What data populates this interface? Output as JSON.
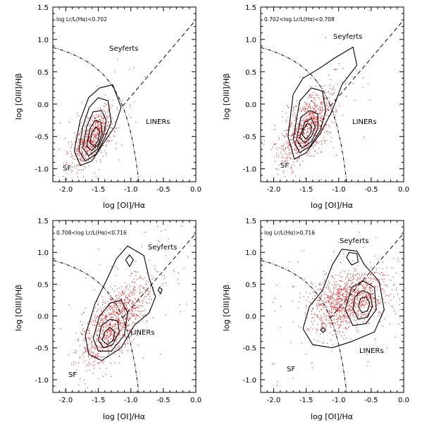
{
  "chart_data": [
    {
      "type": "scatter",
      "condition_label": "log Lr/L(Hα)<0.702",
      "xlabel": "log [OI]/Hα",
      "ylabel": "log [OIII]/Hβ",
      "xlim": [
        -2.2,
        0.0
      ],
      "ylim": [
        -1.2,
        1.5
      ],
      "xticks": [
        "-2.0",
        "-1.5",
        "-1.0",
        "-0.5",
        "0.0"
      ],
      "yticks": [
        "-1.0",
        "-0.5",
        "0.0",
        "0.5",
        "1.0",
        "1.5"
      ],
      "region_labels": {
        "seyferts": "Seyferts",
        "liners": "LINERs",
        "sf": "SF"
      },
      "point_cloud": {
        "center": [
          -1.58,
          -0.5
        ],
        "spread": [
          0.2,
          0.3
        ],
        "count": 700,
        "tilt": 0.9
      },
      "contours": [
        [
          [
            -1.87,
            -0.72
          ],
          [
            -1.78,
            -0.95
          ],
          [
            -1.6,
            -0.88
          ],
          [
            -1.42,
            -0.6
          ],
          [
            -1.25,
            -0.35
          ],
          [
            -1.15,
            -0.05
          ],
          [
            -1.28,
            0.3
          ],
          [
            -1.48,
            0.25
          ],
          [
            -1.65,
            0.1
          ],
          [
            -1.78,
            -0.25
          ],
          [
            -1.87,
            -0.72
          ]
        ],
        [
          [
            -1.8,
            -0.72
          ],
          [
            -1.7,
            -0.88
          ],
          [
            -1.54,
            -0.78
          ],
          [
            -1.4,
            -0.52
          ],
          [
            -1.3,
            -0.28
          ],
          [
            -1.35,
            0.05
          ],
          [
            -1.5,
            0.1
          ],
          [
            -1.64,
            -0.05
          ],
          [
            -1.74,
            -0.35
          ],
          [
            -1.8,
            -0.72
          ]
        ],
        [
          [
            -1.74,
            -0.68
          ],
          [
            -1.65,
            -0.8
          ],
          [
            -1.52,
            -0.7
          ],
          [
            -1.42,
            -0.48
          ],
          [
            -1.38,
            -0.25
          ],
          [
            -1.45,
            -0.1
          ],
          [
            -1.58,
            -0.12
          ],
          [
            -1.68,
            -0.35
          ],
          [
            -1.74,
            -0.68
          ]
        ],
        [
          [
            -1.68,
            -0.65
          ],
          [
            -1.6,
            -0.72
          ],
          [
            -1.5,
            -0.62
          ],
          [
            -1.44,
            -0.45
          ],
          [
            -1.46,
            -0.28
          ],
          [
            -1.55,
            -0.25
          ],
          [
            -1.63,
            -0.38
          ],
          [
            -1.68,
            -0.65
          ]
        ],
        [
          [
            -1.63,
            -0.6
          ],
          [
            -1.56,
            -0.66
          ],
          [
            -1.5,
            -0.55
          ],
          [
            -1.48,
            -0.42
          ],
          [
            -1.54,
            -0.35
          ],
          [
            -1.6,
            -0.45
          ],
          [
            -1.63,
            -0.6
          ]
        ]
      ]
    },
    {
      "type": "scatter",
      "condition_label": "0.702<log Lr/L(Hα)<0.708",
      "xlabel": "log [OI]/Hα",
      "ylabel": "log [OIII]/Hβ",
      "xlim": [
        -2.2,
        0.0
      ],
      "ylim": [
        -1.2,
        1.5
      ],
      "xticks": [
        "-2.0",
        "-1.5",
        "-1.0",
        "-0.5",
        "0.0"
      ],
      "yticks": [
        "-1.0",
        "-0.5",
        "0.0",
        "0.5",
        "1.0",
        "1.5"
      ],
      "region_labels": {
        "seyferts": "Seyferts",
        "liners": "LINERs",
        "sf": "SF"
      },
      "point_cloud": {
        "center": [
          -1.5,
          -0.35
        ],
        "spread": [
          0.26,
          0.38
        ],
        "count": 900,
        "tilt": 0.9
      },
      "contours": [
        [
          [
            -1.78,
            -0.5
          ],
          [
            -1.68,
            -0.85
          ],
          [
            -1.5,
            -0.75
          ],
          [
            -1.28,
            -0.45
          ],
          [
            -1.1,
            -0.1
          ],
          [
            -0.95,
            0.3
          ],
          [
            -0.72,
            0.6
          ],
          [
            -0.78,
            0.88
          ],
          [
            -1.08,
            0.7
          ],
          [
            -1.3,
            0.55
          ],
          [
            -1.55,
            0.4
          ],
          [
            -1.7,
            0.15
          ],
          [
            -1.78,
            -0.5
          ]
        ],
        [
          [
            -1.7,
            -0.55
          ],
          [
            -1.6,
            -0.75
          ],
          [
            -1.44,
            -0.65
          ],
          [
            -1.28,
            -0.4
          ],
          [
            -1.2,
            -0.1
          ],
          [
            -1.25,
            0.2
          ],
          [
            -1.42,
            0.25
          ],
          [
            -1.6,
            0.05
          ],
          [
            -1.7,
            -0.55
          ]
        ],
        [
          [
            -1.65,
            -0.55
          ],
          [
            -1.56,
            -0.68
          ],
          [
            -1.42,
            -0.58
          ],
          [
            -1.32,
            -0.38
          ],
          [
            -1.32,
            -0.15
          ],
          [
            -1.45,
            -0.1
          ],
          [
            -1.58,
            -0.2
          ],
          [
            -1.65,
            -0.55
          ]
        ],
        [
          [
            -1.6,
            -0.52
          ],
          [
            -1.52,
            -0.6
          ],
          [
            -1.42,
            -0.5
          ],
          [
            -1.36,
            -0.35
          ],
          [
            -1.42,
            -0.22
          ],
          [
            -1.52,
            -0.28
          ],
          [
            -1.6,
            -0.52
          ]
        ],
        [
          [
            -1.56,
            -0.48
          ],
          [
            -1.5,
            -0.54
          ],
          [
            -1.43,
            -0.45
          ],
          [
            -1.42,
            -0.34
          ],
          [
            -1.48,
            -0.3
          ],
          [
            -1.54,
            -0.38
          ],
          [
            -1.56,
            -0.48
          ]
        ]
      ]
    },
    {
      "type": "scatter",
      "condition_label": "0.708<log Lr/L(Hα)<0.716",
      "xlabel": "log [OI]/Hα",
      "ylabel": "log [OIII]/Hβ",
      "xlim": [
        -2.2,
        0.0
      ],
      "ylim": [
        -1.2,
        1.5
      ],
      "xticks": [
        "-2.0",
        "-1.5",
        "-1.0",
        "-0.5",
        "0.0"
      ],
      "yticks": [
        "-1.0",
        "-0.5",
        "0.0",
        "0.5",
        "1.0",
        "1.5"
      ],
      "region_labels": {
        "seyferts": "Seyferts",
        "liners": "LINERs",
        "sf": "SF"
      },
      "point_cloud": {
        "center": [
          -1.25,
          -0.1
        ],
        "spread": [
          0.32,
          0.45
        ],
        "count": 1100,
        "tilt": 0.8
      },
      "contours": [
        [
          [
            -1.7,
            -0.3
          ],
          [
            -1.65,
            -0.6
          ],
          [
            -1.45,
            -0.7
          ],
          [
            -1.15,
            -0.5
          ],
          [
            -0.95,
            -0.15
          ],
          [
            -0.72,
            0.05
          ],
          [
            -0.62,
            0.3
          ],
          [
            -0.72,
            0.6
          ],
          [
            -0.8,
            0.95
          ],
          [
            -1.05,
            1.1
          ],
          [
            -1.22,
            0.9
          ],
          [
            -1.38,
            0.55
          ],
          [
            -1.55,
            0.2
          ],
          [
            -1.7,
            -0.3
          ]
        ],
        [
          [
            -1.58,
            -0.35
          ],
          [
            -1.5,
            -0.55
          ],
          [
            -1.3,
            -0.55
          ],
          [
            -1.1,
            -0.3
          ],
          [
            -1.05,
            0.05
          ],
          [
            -1.15,
            0.25
          ],
          [
            -1.32,
            0.2
          ],
          [
            -1.48,
            0.0
          ],
          [
            -1.58,
            -0.35
          ]
        ],
        [
          [
            -1.5,
            -0.38
          ],
          [
            -1.42,
            -0.5
          ],
          [
            -1.28,
            -0.45
          ],
          [
            -1.18,
            -0.25
          ],
          [
            -1.2,
            -0.08
          ],
          [
            -1.32,
            -0.05
          ],
          [
            -1.45,
            -0.15
          ],
          [
            -1.5,
            -0.38
          ]
        ],
        [
          [
            -1.44,
            -0.38
          ],
          [
            -1.36,
            -0.45
          ],
          [
            -1.27,
            -0.38
          ],
          [
            -1.25,
            -0.25
          ],
          [
            -1.32,
            -0.18
          ],
          [
            -1.4,
            -0.25
          ],
          [
            -1.44,
            -0.38
          ]
        ],
        [
          [
            -1.08,
            0.88
          ],
          [
            -1.02,
            0.78
          ],
          [
            -0.96,
            0.88
          ],
          [
            -1.02,
            0.96
          ],
          [
            -1.08,
            0.88
          ]
        ],
        [
          [
            -0.58,
            0.4
          ],
          [
            -0.54,
            0.35
          ],
          [
            -0.52,
            0.42
          ],
          [
            -0.56,
            0.45
          ],
          [
            -0.58,
            0.4
          ]
        ]
      ]
    },
    {
      "type": "scatter",
      "condition_label": "log Lr/L(Hα)>0.716",
      "xlabel": "log [OI]/Hα",
      "ylabel": "log [OIII]/Hβ",
      "xlim": [
        -2.2,
        0.0
      ],
      "ylim": [
        -1.2,
        1.5
      ],
      "xticks": [
        "-2.0",
        "-1.5",
        "-1.0",
        "-0.5",
        "0.0"
      ],
      "yticks": [
        "-1.0",
        "-0.5",
        "0.0",
        "0.5",
        "1.0",
        "1.5"
      ],
      "region_labels": {
        "seyferts": "Seyferts",
        "liners": "LINERs",
        "sf": "SF"
      },
      "point_cloud": {
        "center": [
          -0.85,
          0.25
        ],
        "spread": [
          0.38,
          0.4
        ],
        "count": 1200,
        "tilt": 0.3
      },
      "contours": [
        [
          [
            -1.55,
            -0.2
          ],
          [
            -1.4,
            -0.45
          ],
          [
            -1.1,
            -0.5
          ],
          [
            -0.8,
            -0.4
          ],
          [
            -0.45,
            -0.25
          ],
          [
            -0.3,
            0.1
          ],
          [
            -0.38,
            0.55
          ],
          [
            -0.6,
            0.8
          ],
          [
            -0.72,
            1.02
          ],
          [
            -0.95,
            1.05
          ],
          [
            -1.1,
            0.8
          ],
          [
            -1.25,
            0.4
          ],
          [
            -1.45,
            0.15
          ],
          [
            -1.55,
            -0.2
          ]
        ],
        [
          [
            -0.9,
            0.1
          ],
          [
            -0.78,
            -0.15
          ],
          [
            -0.58,
            -0.12
          ],
          [
            -0.42,
            0.1
          ],
          [
            -0.45,
            0.45
          ],
          [
            -0.62,
            0.55
          ],
          [
            -0.8,
            0.45
          ],
          [
            -0.9,
            0.1
          ]
        ],
        [
          [
            -0.78,
            0.12
          ],
          [
            -0.7,
            -0.05
          ],
          [
            -0.56,
            -0.02
          ],
          [
            -0.48,
            0.15
          ],
          [
            -0.52,
            0.35
          ],
          [
            -0.64,
            0.4
          ],
          [
            -0.75,
            0.3
          ],
          [
            -0.78,
            0.12
          ]
        ],
        [
          [
            -0.7,
            0.15
          ],
          [
            -0.64,
            0.05
          ],
          [
            -0.56,
            0.08
          ],
          [
            -0.52,
            0.2
          ],
          [
            -0.58,
            0.3
          ],
          [
            -0.66,
            0.28
          ],
          [
            -0.7,
            0.15
          ]
        ],
        [
          [
            -0.88,
            0.92
          ],
          [
            -0.8,
            0.8
          ],
          [
            -0.7,
            0.85
          ],
          [
            -0.72,
            0.98
          ],
          [
            -0.84,
            1.0
          ],
          [
            -0.88,
            0.92
          ]
        ],
        [
          [
            -1.28,
            -0.22
          ],
          [
            -1.24,
            -0.26
          ],
          [
            -1.2,
            -0.22
          ],
          [
            -1.24,
            -0.18
          ],
          [
            -1.28,
            -0.22
          ]
        ]
      ]
    }
  ],
  "colors": {
    "points": "#e8191c",
    "lines": "#000000",
    "background": "#ffffff"
  }
}
